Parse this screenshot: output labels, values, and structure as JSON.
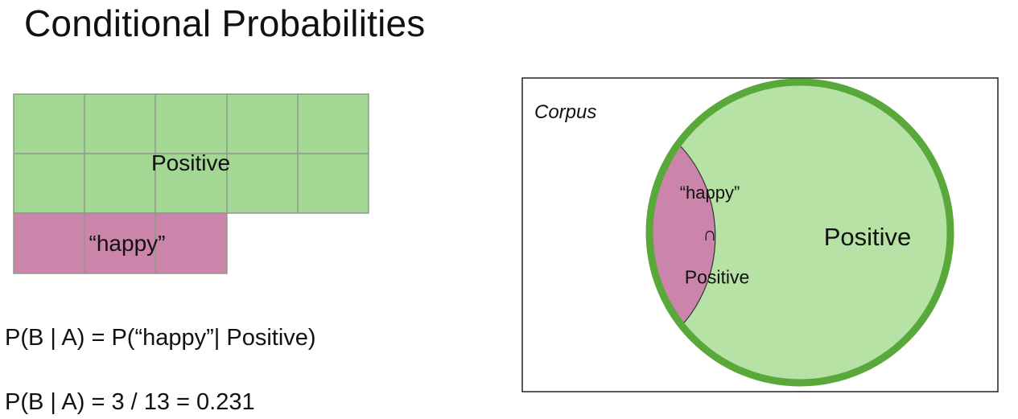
{
  "slide": {
    "title": "Conditional Probabilities"
  },
  "grid": {
    "positive_label": "Positive",
    "happy_label": "“happy”",
    "colors": {
      "positive": "#a3d794",
      "happy": "#cb84aa",
      "lines": "#8e9a8c"
    }
  },
  "formulas": {
    "line1": "P(B | A) = P(“happy”| Positive)",
    "line2": "P(B | A) = 3 / 13 = 0.231"
  },
  "venn": {
    "corpus_label": "Corpus",
    "positive_label": "Positive",
    "intersection": {
      "line1": "“happy”",
      "symbol": "∩",
      "line2": "Positive"
    },
    "colors": {
      "circle_fill": "#b6e2a5",
      "circle_stroke": "#58a83a",
      "lens_fill": "#cb84aa"
    }
  }
}
